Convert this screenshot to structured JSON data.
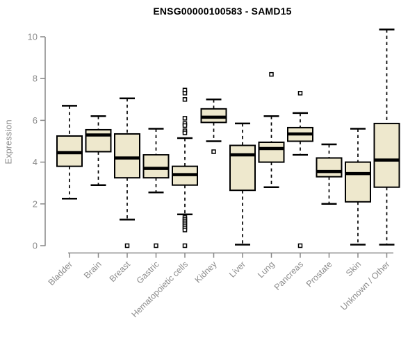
{
  "page": {
    "title": "ENSG00000100583 - SAMD15"
  },
  "chart_data": {
    "type": "boxplot",
    "title": "ENSG00000100583 - SAMD15",
    "xlabel": "",
    "ylabel": "Expression",
    "ylim": [
      0,
      10.4
    ],
    "yticks": [
      0,
      2,
      4,
      6,
      8,
      10
    ],
    "grid": false,
    "legend": false,
    "categories": [
      "Bladder",
      "Brain",
      "Breast",
      "Gastric",
      "Hematopoietic cells",
      "Kidney",
      "Liver",
      "Lung",
      "Pancreas",
      "Prostate",
      "Skin",
      "Unknown / Other"
    ],
    "boxes": [
      {
        "category": "Bladder",
        "whisker_low": 2.25,
        "q1": 3.8,
        "median": 4.45,
        "q3": 5.25,
        "whisker_high": 6.7,
        "outliers": []
      },
      {
        "category": "Brain",
        "whisker_low": 2.9,
        "q1": 4.5,
        "median": 5.3,
        "q3": 5.55,
        "whisker_high": 6.2,
        "outliers": []
      },
      {
        "category": "Breast",
        "whisker_low": 1.25,
        "q1": 3.25,
        "median": 4.2,
        "q3": 5.35,
        "whisker_high": 7.05,
        "outliers": [
          0.0
        ]
      },
      {
        "category": "Gastric",
        "whisker_low": 2.55,
        "q1": 3.25,
        "median": 3.7,
        "q3": 4.35,
        "whisker_high": 5.6,
        "outliers": [
          0.0
        ]
      },
      {
        "category": "Hematopoietic cells",
        "whisker_low": 1.5,
        "q1": 2.9,
        "median": 3.4,
        "q3": 3.8,
        "whisker_high": 5.15,
        "outliers": [
          7.45,
          7.3,
          7.0,
          6.1,
          5.85,
          5.75,
          5.5,
          5.4,
          1.35,
          1.25,
          1.15,
          1.05,
          0.95,
          0.85,
          0.75,
          0.0
        ]
      },
      {
        "category": "Kidney",
        "whisker_low": 5.0,
        "q1": 5.9,
        "median": 6.15,
        "q3": 6.55,
        "whisker_high": 7.0,
        "outliers": [
          4.5
        ]
      },
      {
        "category": "Liver",
        "whisker_low": 0.05,
        "q1": 2.65,
        "median": 4.35,
        "q3": 4.8,
        "whisker_high": 5.85,
        "outliers": []
      },
      {
        "category": "Lung",
        "whisker_low": 2.8,
        "q1": 4.0,
        "median": 4.65,
        "q3": 4.95,
        "whisker_high": 6.2,
        "outliers": [
          8.2
        ]
      },
      {
        "category": "Pancreas",
        "whisker_low": 4.35,
        "q1": 5.0,
        "median": 5.35,
        "q3": 5.65,
        "whisker_high": 6.35,
        "outliers": [
          7.3,
          0.0
        ]
      },
      {
        "category": "Prostate",
        "whisker_low": 2.0,
        "q1": 3.3,
        "median": 3.55,
        "q3": 4.2,
        "whisker_high": 4.85,
        "outliers": []
      },
      {
        "category": "Skin",
        "whisker_low": 0.05,
        "q1": 2.1,
        "median": 3.45,
        "q3": 4.0,
        "whisker_high": 5.6,
        "outliers": []
      },
      {
        "category": "Unknown / Other",
        "whisker_low": 0.05,
        "q1": 2.8,
        "median": 4.1,
        "q3": 5.85,
        "whisker_high": 10.35,
        "outliers": []
      }
    ],
    "colors": {
      "box_fill": "#EEE8CD",
      "box_border": "#000000",
      "median": "#000000",
      "whisker": "#000000",
      "outlier_stroke": "#000000",
      "axis": "#878787",
      "tick_label": "#8c8c8c",
      "title": "#000000",
      "background": "#ffffff"
    }
  }
}
